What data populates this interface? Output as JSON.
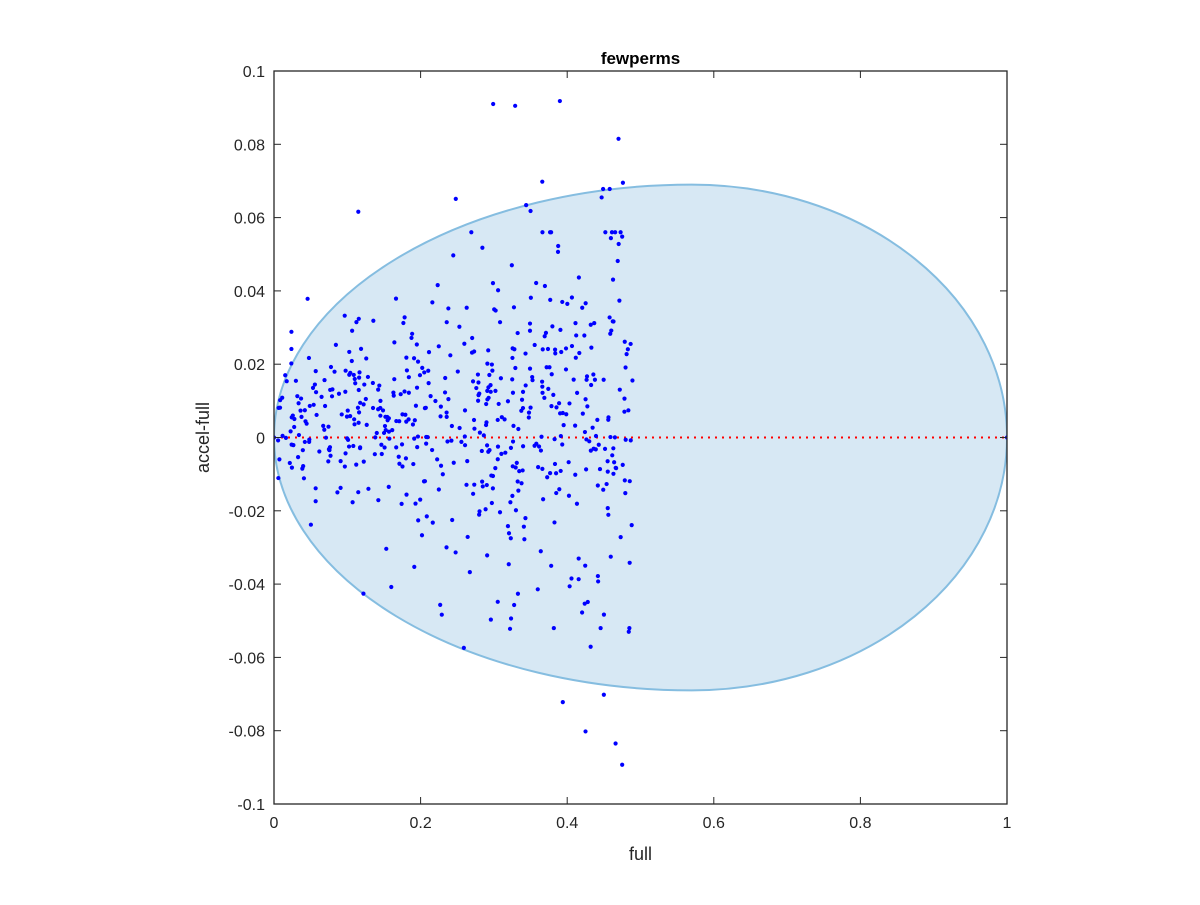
{
  "chart_data": {
    "type": "scatter",
    "title": "fewperms",
    "xlabel": "full",
    "ylabel": "accel-full",
    "xlim": [
      0,
      1
    ],
    "ylim": [
      -0.1,
      0.1
    ],
    "x_ticks": [
      0,
      0.2,
      0.4,
      0.6,
      0.8,
      1
    ],
    "x_tick_labels": [
      "0",
      "0.2",
      "0.4",
      "0.6",
      "0.8",
      "1"
    ],
    "y_ticks": [
      -0.1,
      -0.08,
      -0.06,
      -0.04,
      -0.02,
      0,
      0.02,
      0.04,
      0.06,
      0.08,
      0.1
    ],
    "y_tick_labels": [
      "-0.1",
      "-0.08",
      "-0.06",
      "-0.04",
      "-0.02",
      "0",
      "0.02",
      "0.04",
      "0.06",
      "0.08",
      "0.1"
    ],
    "grid": false,
    "ellipse_region": {
      "x_left": 0,
      "x_right": 1,
      "x_center": 0.57,
      "y_max": 0.069,
      "y_min": -0.069
    },
    "reference_line": {
      "y": 0,
      "style": "dotted"
    },
    "colors": {
      "points": "#0000ff",
      "region_fill": "#d7e8f4",
      "region_edge": "#85bde0",
      "reference_line": "#ff0000"
    },
    "outlier_points": [
      [
        0.299,
        0.091
      ],
      [
        0.329,
        0.0905
      ],
      [
        0.39,
        0.0918
      ],
      [
        0.47,
        0.0815
      ],
      [
        0.476,
        0.0695
      ],
      [
        0.366,
        0.0698
      ],
      [
        0.449,
        0.0678
      ],
      [
        0.458,
        0.0678
      ],
      [
        0.447,
        0.0655
      ],
      [
        0.248,
        0.0651
      ],
      [
        0.115,
        0.0616
      ],
      [
        0.344,
        0.0634
      ],
      [
        0.35,
        0.0618
      ],
      [
        0.475,
        0.0548
      ],
      [
        0.394,
        -0.0722
      ],
      [
        0.45,
        -0.0702
      ],
      [
        0.425,
        -0.0802
      ],
      [
        0.466,
        -0.0835
      ],
      [
        0.475,
        -0.0893
      ],
      [
        0.122,
        -0.0426
      ],
      [
        0.16,
        -0.0408
      ],
      [
        0.259,
        -0.0574
      ],
      [
        0.432,
        -0.0571
      ],
      [
        0.322,
        -0.0522
      ],
      [
        0.484,
        -0.053
      ],
      [
        1.0,
        0.0
      ],
      [
        0.0,
        0.0
      ]
    ],
    "cloud": {
      "count": 540,
      "seed": 17,
      "x_range": [
        0.0,
        0.49
      ],
      "y_range": [
        -0.052,
        0.056
      ],
      "y_mean": 0.005,
      "y_sd_min": 0.009,
      "y_sd_max": 0.031
    }
  }
}
